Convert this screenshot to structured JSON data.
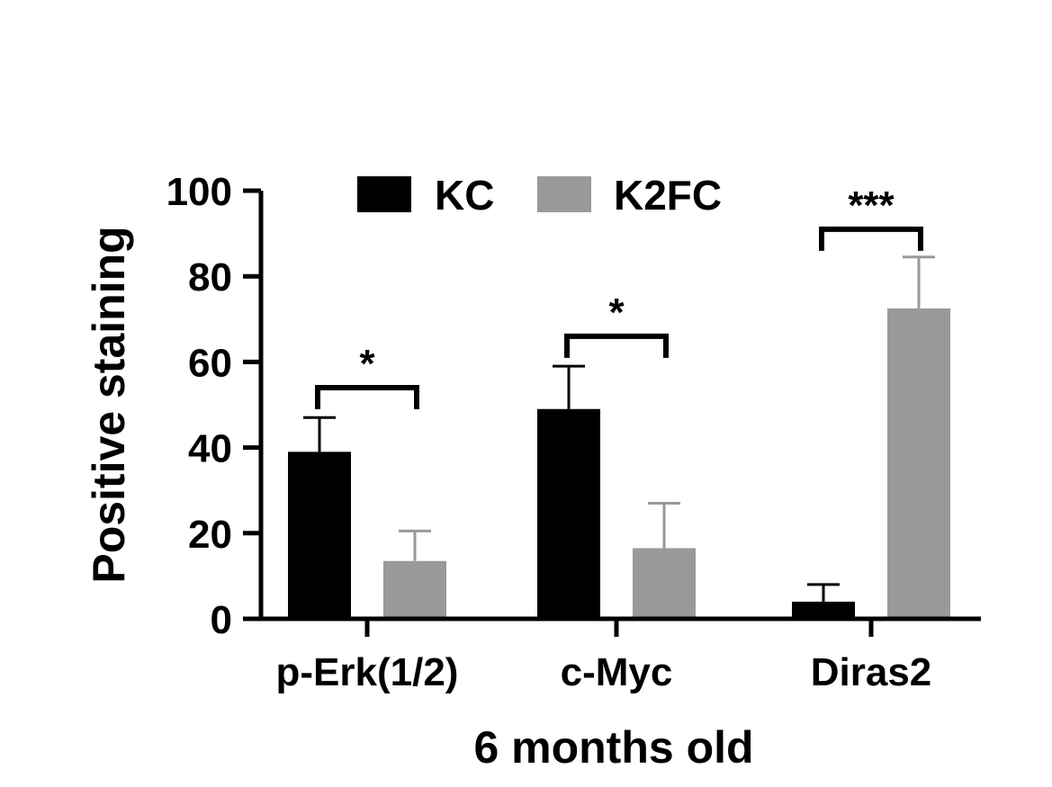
{
  "chart_data": {
    "type": "bar",
    "xlabel": "6 months old",
    "ylabel": "Positive staining",
    "ylim": [
      0,
      100
    ],
    "yticks": [
      "0",
      "20",
      "40",
      "60",
      "80",
      "100"
    ],
    "categories": [
      "p-Erk(1/2)",
      "c-Myc",
      "Diras2"
    ],
    "series": [
      {
        "name": "KC",
        "color": "#000000",
        "values": [
          39,
          49,
          4
        ],
        "errors": [
          8,
          10,
          4
        ]
      },
      {
        "name": "K2FC",
        "color": "#999999",
        "values": [
          13.5,
          16.5,
          72.5
        ],
        "errors": [
          7,
          10.5,
          12
        ]
      }
    ],
    "significance": [
      {
        "category_index": 0,
        "label": "*",
        "level": 54
      },
      {
        "category_index": 1,
        "label": "*",
        "level": 66
      },
      {
        "category_index": 2,
        "label": "***",
        "level": 91
      }
    ],
    "legend_position": "top-center",
    "grid": false
  }
}
